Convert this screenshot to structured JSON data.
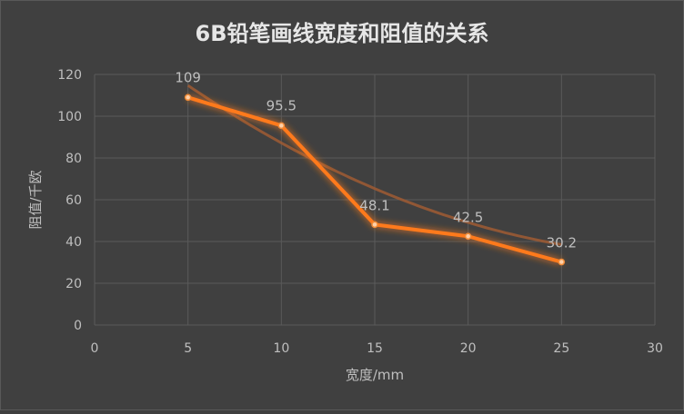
{
  "chart_data": {
    "type": "line",
    "title": "6B铅笔画线宽度和阻值的关系",
    "xlabel": "宽度/mm",
    "ylabel": "阻值/千欧",
    "xlim": [
      0,
      30
    ],
    "ylim": [
      0,
      120
    ],
    "xticks": [
      0,
      5,
      10,
      15,
      20,
      25,
      30
    ],
    "yticks": [
      0,
      20,
      40,
      60,
      80,
      100,
      120
    ],
    "grid": true,
    "legend": "none",
    "series": [
      {
        "points": [
          {
            "x": 5,
            "y": 109,
            "label": "109"
          },
          {
            "x": 10,
            "y": 95.5,
            "label": "95.5"
          },
          {
            "x": 15,
            "y": 48.1,
            "label": "48.1"
          },
          {
            "x": 20,
            "y": 42.5,
            "label": "42.5"
          },
          {
            "x": 25,
            "y": 30.2,
            "label": "30.2"
          }
        ]
      }
    ],
    "trendline": {
      "type": "polynomial-2",
      "coefficients": [
        0.113,
        -7.2,
        147.9
      ]
    },
    "colors": {
      "background": "#404040",
      "grid": "#5a5a5a",
      "axis_text": "#bfbfbf",
      "title": "#e6e6e6",
      "series": "#f28c38",
      "series_glow": "#ff7a1a",
      "trend": "#9a5a34"
    }
  }
}
